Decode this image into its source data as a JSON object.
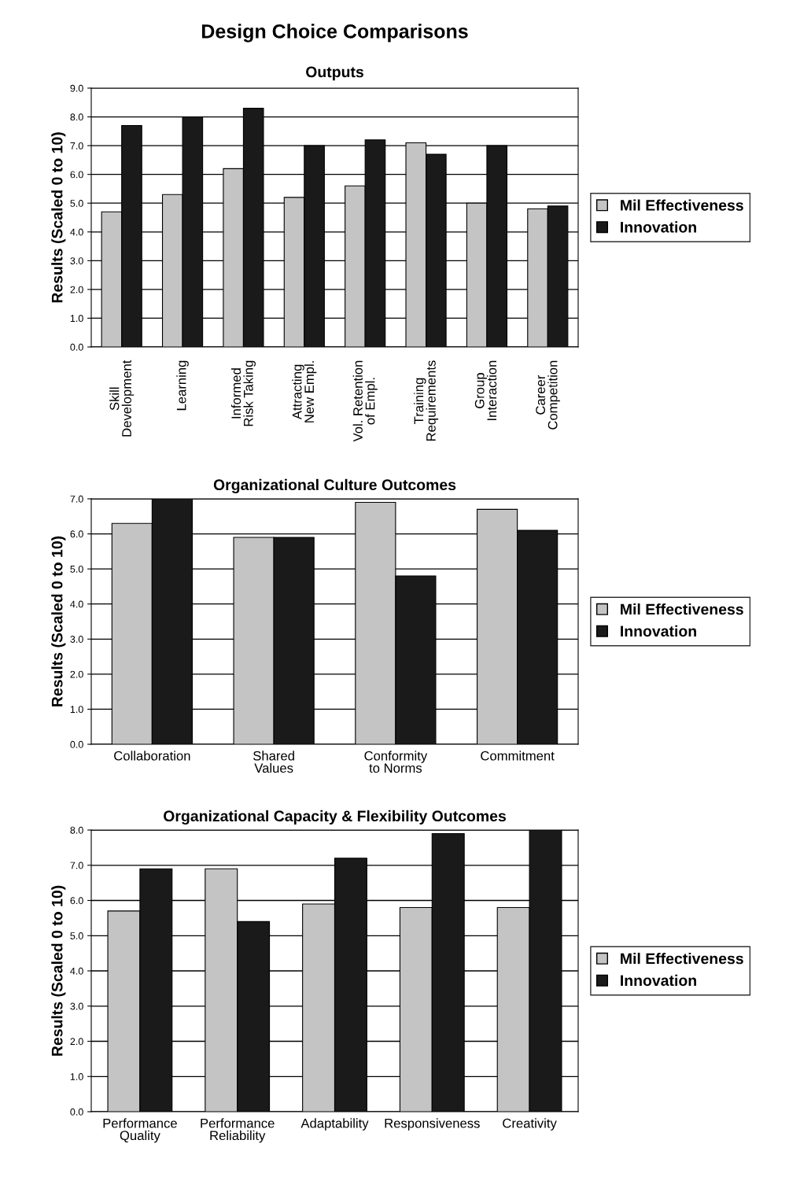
{
  "chart_data": [
    {
      "type": "bar",
      "title": "Design Choice Comparisons",
      "subtitle": "Outputs",
      "ylabel": "Results (Scaled 0 to 10)",
      "categories": [
        "Skill\nDevelopment",
        "Learning",
        "Informed\nRisk Taking",
        "Attracting\nNew Empl.",
        "Vol. Retention\nof Empl.",
        "Training\nRequirements",
        "Group\nInteraction",
        "Career\nCompetition"
      ],
      "series": [
        {
          "name": "Mil Effectiveness",
          "color": "#c4c4c4",
          "values": [
            4.7,
            5.3,
            6.2,
            5.2,
            5.6,
            7.1,
            5.0,
            4.8
          ]
        },
        {
          "name": "Innovation",
          "color": "#1a1a1a",
          "values": [
            7.7,
            8.0,
            8.3,
            7.0,
            7.2,
            6.7,
            7.0,
            4.9
          ]
        }
      ],
      "ylim": [
        0,
        9
      ],
      "yticks": [
        {
          "value": 0,
          "label": "0.0"
        },
        {
          "value": 1,
          "label": "1.0"
        },
        {
          "value": 2,
          "label": "2.0"
        },
        {
          "value": 3,
          "label": "3.0"
        },
        {
          "value": 4,
          "label": "4.0"
        },
        {
          "value": 5,
          "label": "5.0"
        },
        {
          "value": 6,
          "label": "6.0"
        },
        {
          "value": 7,
          "label": "7.0"
        },
        {
          "value": 8,
          "label": "8.0"
        },
        {
          "value": 9,
          "label": "9.0"
        }
      ],
      "grid": "y",
      "legend": "right"
    },
    {
      "type": "bar",
      "title": "Organizational Culture Outcomes",
      "ylabel": "Results (Scaled 0 to 10)",
      "categories": [
        "Collaboration",
        "Shared\nValues",
        "Conformity\nto Norms",
        "Commitment"
      ],
      "series": [
        {
          "name": "Mil Effectiveness",
          "color": "#c4c4c4",
          "values": [
            6.3,
            5.9,
            6.9,
            6.7
          ]
        },
        {
          "name": "Innovation",
          "color": "#1a1a1a",
          "values": [
            7.0,
            5.9,
            4.8,
            6.1
          ]
        }
      ],
      "ylim": [
        0,
        7
      ],
      "yticks": [
        {
          "value": 0,
          "label": "0.0"
        },
        {
          "value": 1,
          "label": "1.0"
        },
        {
          "value": 2,
          "label": "2.0"
        },
        {
          "value": 3,
          "label": "3.0"
        },
        {
          "value": 4,
          "label": "4.0"
        },
        {
          "value": 5,
          "label": "5.0"
        },
        {
          "value": 6,
          "label": "6.0"
        },
        {
          "value": 7,
          "label": "7.0"
        }
      ],
      "grid": "y",
      "legend": "right"
    },
    {
      "type": "bar",
      "title": "Organizational Capacity & Flexibility Outcomes",
      "ylabel": "Results (Scaled 0 to 10)",
      "categories": [
        "Performance\nQuality",
        "Performance\nReliability",
        "Adaptability",
        "Responsiveness",
        "Creativity"
      ],
      "series": [
        {
          "name": "Mil Effectiveness",
          "color": "#c4c4c4",
          "values": [
            5.7,
            6.9,
            5.9,
            5.8,
            5.8
          ]
        },
        {
          "name": "Innovation",
          "color": "#1a1a1a",
          "values": [
            6.9,
            5.4,
            7.2,
            7.9,
            8.0
          ]
        }
      ],
      "ylim": [
        0,
        8
      ],
      "yticks": [
        {
          "value": 0,
          "label": "0.0"
        },
        {
          "value": 1,
          "label": "1.0"
        },
        {
          "value": 2,
          "label": "2.0"
        },
        {
          "value": 3,
          "label": "3.0"
        },
        {
          "value": 4,
          "label": "4.0"
        },
        {
          "value": 5,
          "label": "5.0"
        },
        {
          "value": 6,
          "label": "6.0"
        },
        {
          "value": 7,
          "label": "7.0"
        },
        {
          "value": 8,
          "label": "8.0"
        }
      ],
      "grid": "y",
      "legend": "right"
    }
  ]
}
